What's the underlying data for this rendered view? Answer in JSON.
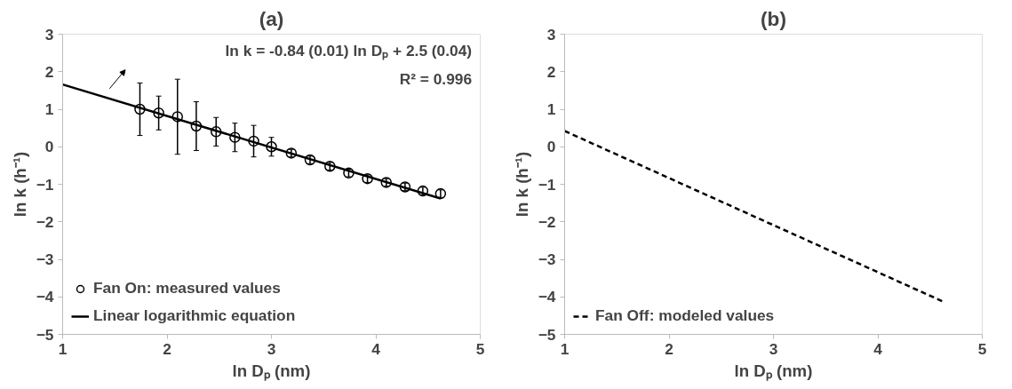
{
  "chart_data": [
    {
      "type": "scatter",
      "title": "(a)",
      "xlabel": "ln Dₚ (nm)",
      "ylabel": "ln k (h⁻¹)",
      "xlim": [
        1,
        5
      ],
      "ylim": [
        -5,
        3
      ],
      "xticks": [
        1,
        2,
        3,
        4,
        5
      ],
      "yticks": [
        -5,
        -4,
        -3,
        -2,
        -1,
        0,
        1,
        2,
        3
      ],
      "grid": false,
      "legend": "bottom left",
      "annotations": [
        "ln k = -0.84 (0.01) ln Dₚ + 2.5 (0.04)",
        "R² = 0.996"
      ],
      "series": [
        {
          "name": "Fan On: measured values",
          "marker": "circle",
          "color": "#000000",
          "x": [
            1.74,
            1.92,
            2.1,
            2.28,
            2.47,
            2.65,
            2.83,
            3.0,
            3.19,
            3.37,
            3.56,
            3.74,
            3.92,
            4.1,
            4.28,
            4.45,
            4.62
          ],
          "values": [
            1.0,
            0.9,
            0.8,
            0.55,
            0.4,
            0.25,
            0.15,
            0.0,
            -0.17,
            -0.35,
            -0.52,
            -0.7,
            -0.85,
            -0.95,
            -1.07,
            -1.18,
            -1.25
          ],
          "errors": [
            0.7,
            0.45,
            1.0,
            0.65,
            0.38,
            0.38,
            0.42,
            0.25,
            0.1,
            0.1,
            0.1,
            0.1,
            0.1,
            0.1,
            0.1,
            0.1,
            0.1
          ]
        },
        {
          "name": "Linear logarithmic equation",
          "type": "line",
          "line_style": "solid",
          "color": "#000000",
          "x": [
            1,
            4.62
          ],
          "values": [
            1.66,
            -1.38
          ]
        }
      ]
    },
    {
      "type": "line",
      "title": "(b)",
      "xlabel": "ln Dₚ (nm)",
      "ylabel": "ln k (h⁻¹)",
      "xlim": [
        1,
        5
      ],
      "ylim": [
        -5,
        3
      ],
      "xticks": [
        1,
        2,
        3,
        4,
        5
      ],
      "yticks": [
        -5,
        -4,
        -3,
        -2,
        -1,
        0,
        1,
        2,
        3
      ],
      "grid": false,
      "legend": "bottom left",
      "series": [
        {
          "name": "Fan Off: modeled values",
          "line_style": "dashed",
          "color": "#000000",
          "x": [
            1,
            4.62
          ],
          "values": [
            0.42,
            -4.12
          ]
        }
      ]
    }
  ]
}
